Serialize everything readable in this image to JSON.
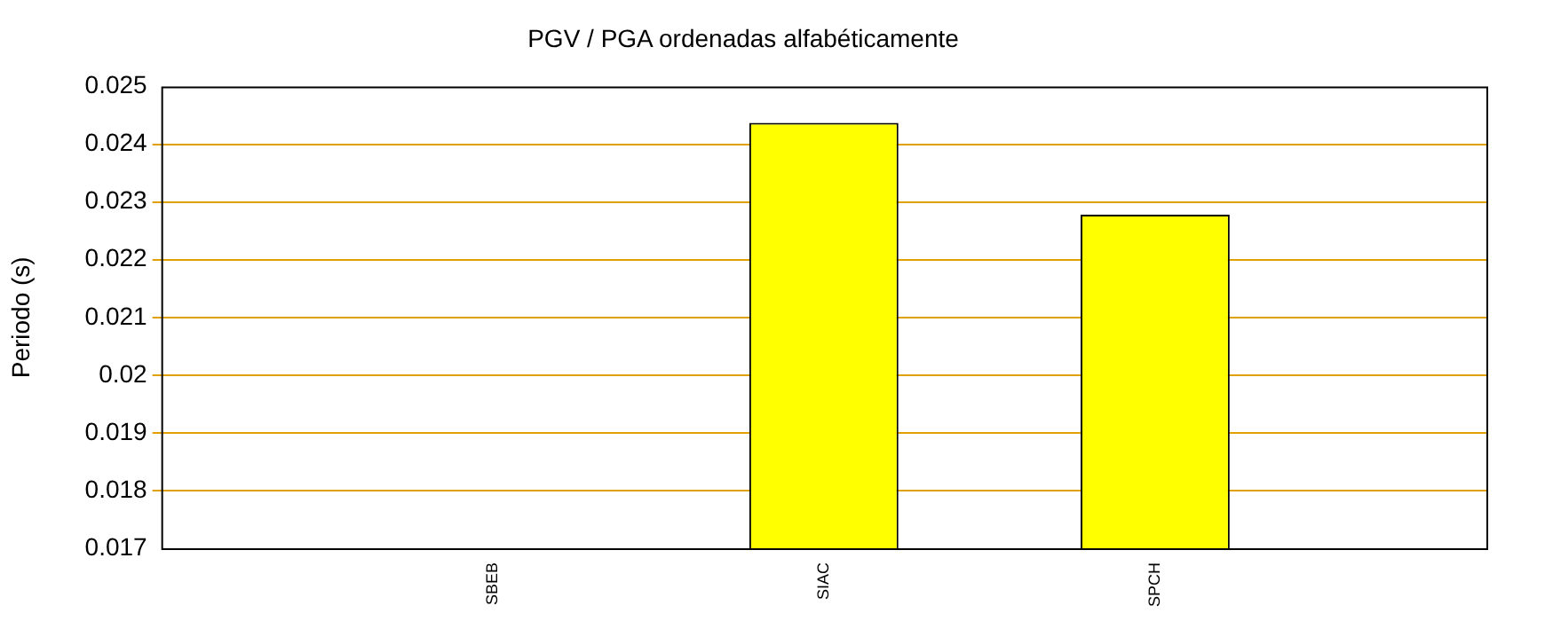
{
  "chart_data": {
    "type": "bar",
    "title": "PGV / PGA ordenadas alfabéticamente",
    "ylabel": "Periodo (s)",
    "categories": [
      "SBEB",
      "SIAC",
      "SPCH"
    ],
    "series": [
      {
        "color": "#ffff00",
        "values": [
          null,
          0.02437,
          0.02278
        ]
      }
    ],
    "ylim": [
      0.017,
      0.025
    ],
    "yticks": [
      0.017,
      0.018,
      0.019,
      0.02,
      0.021,
      0.022,
      0.023,
      0.024,
      0.025
    ],
    "grid": "y",
    "legend": false
  }
}
